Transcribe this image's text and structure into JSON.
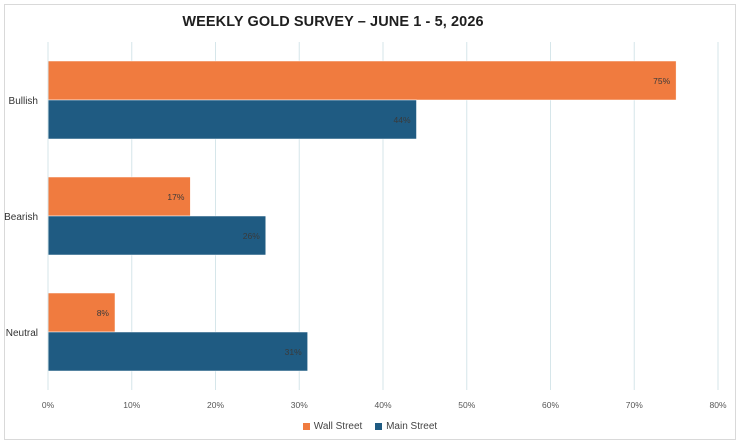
{
  "chart_data": {
    "type": "bar",
    "orientation": "horizontal",
    "title": "WEEKLY GOLD SURVEY – JUNE 1 - 5, 2026",
    "categories": [
      "Bullish",
      "Bearish",
      "Neutral"
    ],
    "series": [
      {
        "name": "Wall Street",
        "color": "#f07b3f",
        "values": [
          75,
          17,
          8
        ],
        "labels": [
          "75%",
          "17%",
          "8%"
        ]
      },
      {
        "name": "Main Street",
        "color": "#1f5b82",
        "values": [
          44,
          26,
          31
        ],
        "labels": [
          "44%",
          "26%",
          "31%"
        ]
      }
    ],
    "xlim": [
      0,
      80
    ],
    "xticks": [
      0,
      10,
      20,
      30,
      40,
      50,
      60,
      70,
      80
    ],
    "xtick_labels": [
      "0%",
      "10%",
      "20%",
      "30%",
      "40%",
      "50%",
      "60%",
      "70%",
      "80%"
    ],
    "xlabel": "",
    "ylabel": "",
    "grid": "vertical",
    "legend": "bottom"
  }
}
